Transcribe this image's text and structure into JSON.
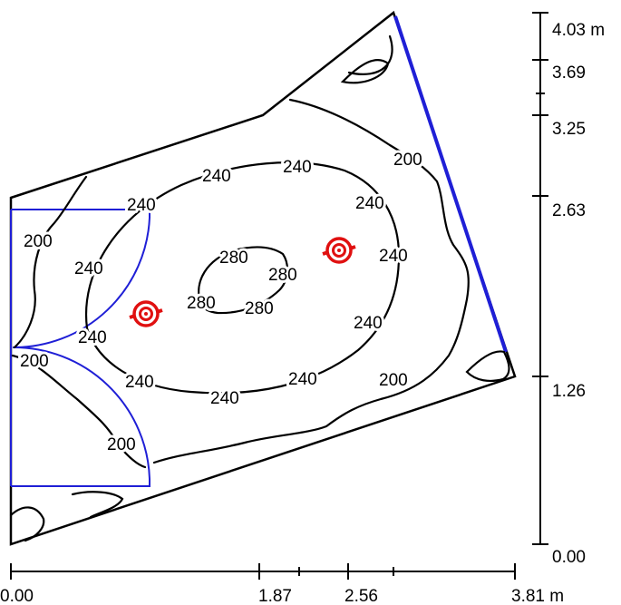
{
  "diagram": {
    "type": "lighting-isolux-plan",
    "contour_labels": [
      "200",
      "240",
      "280"
    ],
    "x_axis": {
      "ticks": [
        "0.00",
        "1.87",
        "2.56",
        "3.81 m"
      ]
    },
    "y_axis": {
      "ticks": [
        "0.00",
        "1.26",
        "2.63",
        "3.25",
        "3.69",
        "4.03 m"
      ]
    },
    "luminaires": [
      {
        "name": "luminaire-1"
      },
      {
        "name": "luminaire-2"
      }
    ],
    "colors": {
      "outline": "#000000",
      "wall_highlight": "#1f1fd6",
      "door_swing": "#1f1fd6",
      "luminaire": "#e01010"
    }
  }
}
